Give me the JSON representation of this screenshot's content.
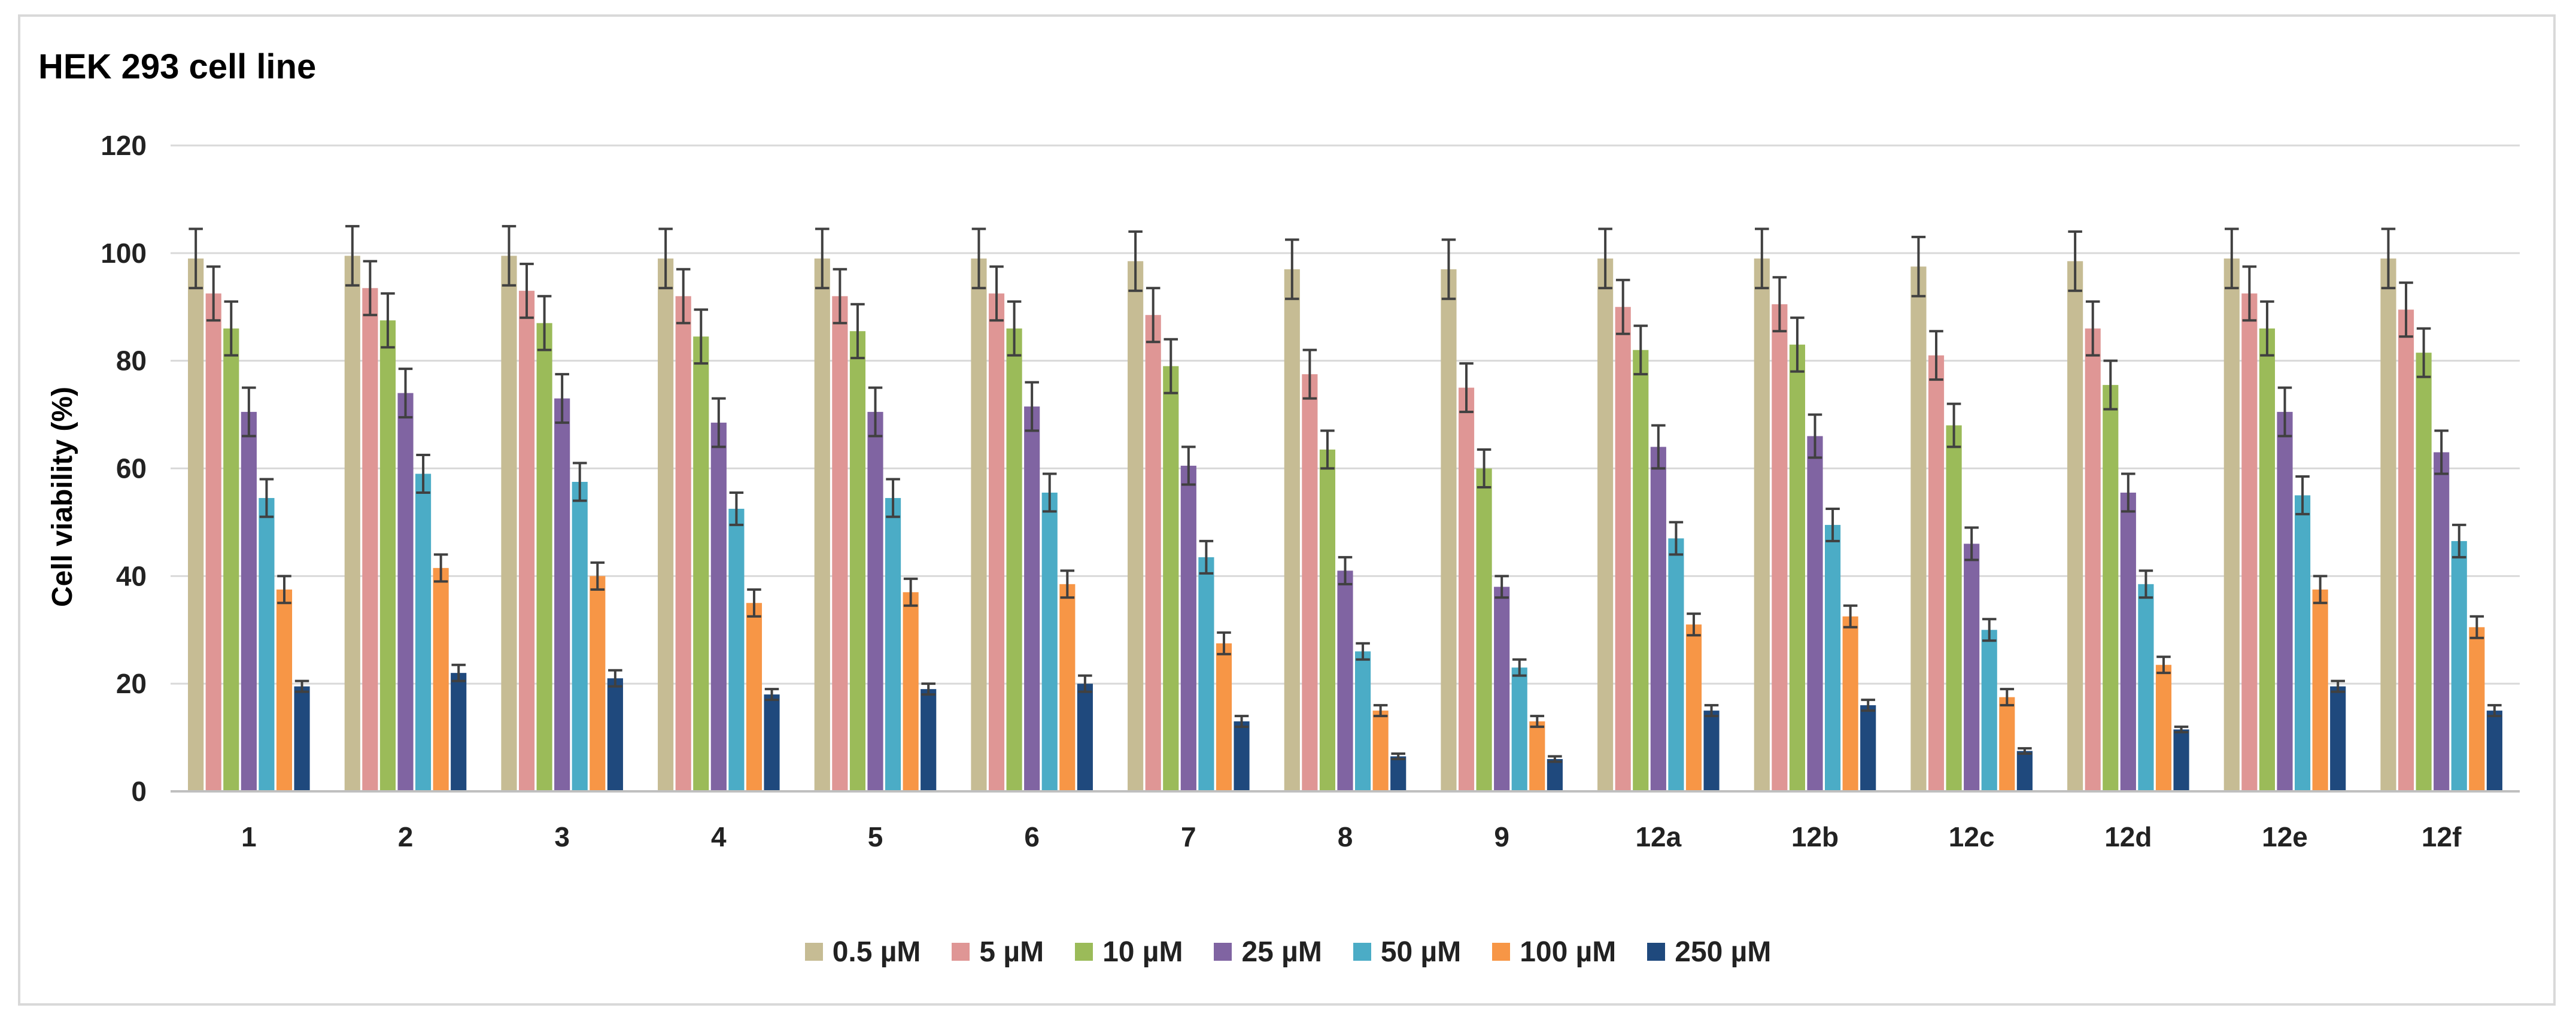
{
  "chart_data": {
    "type": "bar",
    "title": "HEK 293 cell line",
    "xlabel": "",
    "ylabel": "Cell viability (%)",
    "ylim": [
      0,
      120
    ],
    "yticks": [
      0,
      20,
      40,
      60,
      80,
      100,
      120
    ],
    "grid": true,
    "legend_position": "bottom",
    "categories": [
      "1",
      "2",
      "3",
      "4",
      "5",
      "6",
      "7",
      "8",
      "9",
      "12a",
      "12b",
      "12c",
      "12d",
      "12e",
      "12f"
    ],
    "series": [
      {
        "name": "0.5 µM",
        "color": "#c6bc94",
        "values": [
          99,
          99.5,
          99.5,
          99,
          99,
          99,
          98.5,
          97,
          97,
          99,
          99,
          97.5,
          98.5,
          99,
          99
        ],
        "errors": [
          5.5,
          5.5,
          5.5,
          5.5,
          5.5,
          5.5,
          5.5,
          5.5,
          5.5,
          5.5,
          5.5,
          5.5,
          5.5,
          5.5,
          5.5
        ]
      },
      {
        "name": "5 µM",
        "color": "#df9695",
        "values": [
          92.5,
          93.5,
          93,
          92,
          92,
          92.5,
          88.5,
          77.5,
          75,
          90,
          90.5,
          81,
          86,
          92.5,
          89.5
        ],
        "errors": [
          5,
          5,
          5,
          5,
          5,
          5,
          5,
          4.5,
          4.5,
          5,
          5,
          4.5,
          5,
          5,
          5
        ]
      },
      {
        "name": "10 µM",
        "color": "#9bbb59",
        "values": [
          86,
          87.5,
          87,
          84.5,
          85.5,
          86,
          79,
          63.5,
          60,
          82,
          83,
          68,
          75.5,
          86,
          81.5
        ],
        "errors": [
          5,
          5,
          5,
          5,
          5,
          5,
          5,
          3.5,
          3.5,
          4.5,
          5,
          4,
          4.5,
          5,
          4.5
        ]
      },
      {
        "name": "25 µM",
        "color": "#8064a2",
        "values": [
          70.5,
          74,
          73,
          68.5,
          70.5,
          71.5,
          60.5,
          41,
          38,
          64,
          66,
          46,
          55.5,
          70.5,
          63
        ],
        "errors": [
          4.5,
          4.5,
          4.5,
          4.5,
          4.5,
          4.5,
          3.5,
          2.5,
          2,
          4,
          4,
          3,
          3.5,
          4.5,
          4
        ]
      },
      {
        "name": "50 µM",
        "color": "#4bacc6",
        "values": [
          54.5,
          59,
          57.5,
          52.5,
          54.5,
          55.5,
          43.5,
          26,
          23,
          47,
          49.5,
          30,
          38.5,
          55,
          46.5
        ],
        "errors": [
          3.5,
          3.5,
          3.5,
          3,
          3.5,
          3.5,
          3,
          1.5,
          1.5,
          3,
          3,
          2,
          2.5,
          3.5,
          3
        ]
      },
      {
        "name": "100 µM",
        "color": "#f79646",
        "values": [
          37.5,
          41.5,
          40,
          35,
          37,
          38.5,
          27.5,
          15,
          13,
          31,
          32.5,
          17.5,
          23.5,
          37.5,
          30.5
        ],
        "errors": [
          2.5,
          2.5,
          2.5,
          2.5,
          2.5,
          2.5,
          2,
          1,
          1,
          2,
          2,
          1.5,
          1.5,
          2.5,
          2
        ]
      },
      {
        "name": "250 µM",
        "color": "#1f497d",
        "values": [
          19.5,
          22,
          21,
          18,
          19,
          20,
          13,
          6.5,
          6,
          15,
          16,
          7.5,
          11.5,
          19.5,
          15
        ],
        "errors": [
          1,
          1.5,
          1.5,
          1,
          1,
          1.5,
          1,
          0.5,
          0.5,
          1,
          1,
          0.5,
          0.5,
          1,
          1
        ]
      }
    ]
  }
}
